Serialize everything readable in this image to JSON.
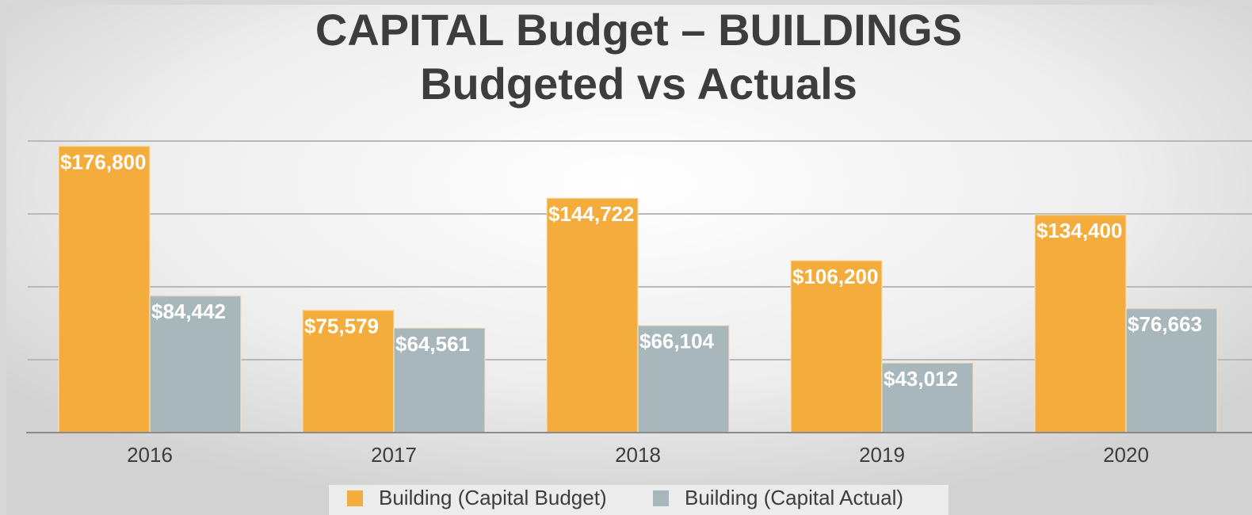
{
  "chart_data": {
    "type": "bar",
    "title": "CAPITAL Budget – BUILDINGS",
    "subtitle": "Budgeted vs Actuals",
    "categories": [
      "2016",
      "2017",
      "2018",
      "2019",
      "2020"
    ],
    "series": [
      {
        "name": "Building (Capital Budget)",
        "color": "#f4ac3c",
        "values": [
          176800,
          75579,
          144722,
          106200,
          134400
        ],
        "value_labels": [
          "$176,800",
          "$75,579",
          "$144,722",
          "$106,200",
          "$134,400"
        ]
      },
      {
        "name": "Building (Capital Actual)",
        "color": "#a7b7bc",
        "values": [
          84442,
          64561,
          66104,
          43012,
          76663
        ],
        "value_labels": [
          "$84,442",
          "$64,561",
          "$66,104",
          "$43,012",
          "$76,663"
        ]
      }
    ],
    "ylim": [
      0,
      180000
    ],
    "yticks": [
      0,
      45000,
      90000,
      135000,
      180000
    ],
    "grid": true,
    "legend": "bottom"
  }
}
